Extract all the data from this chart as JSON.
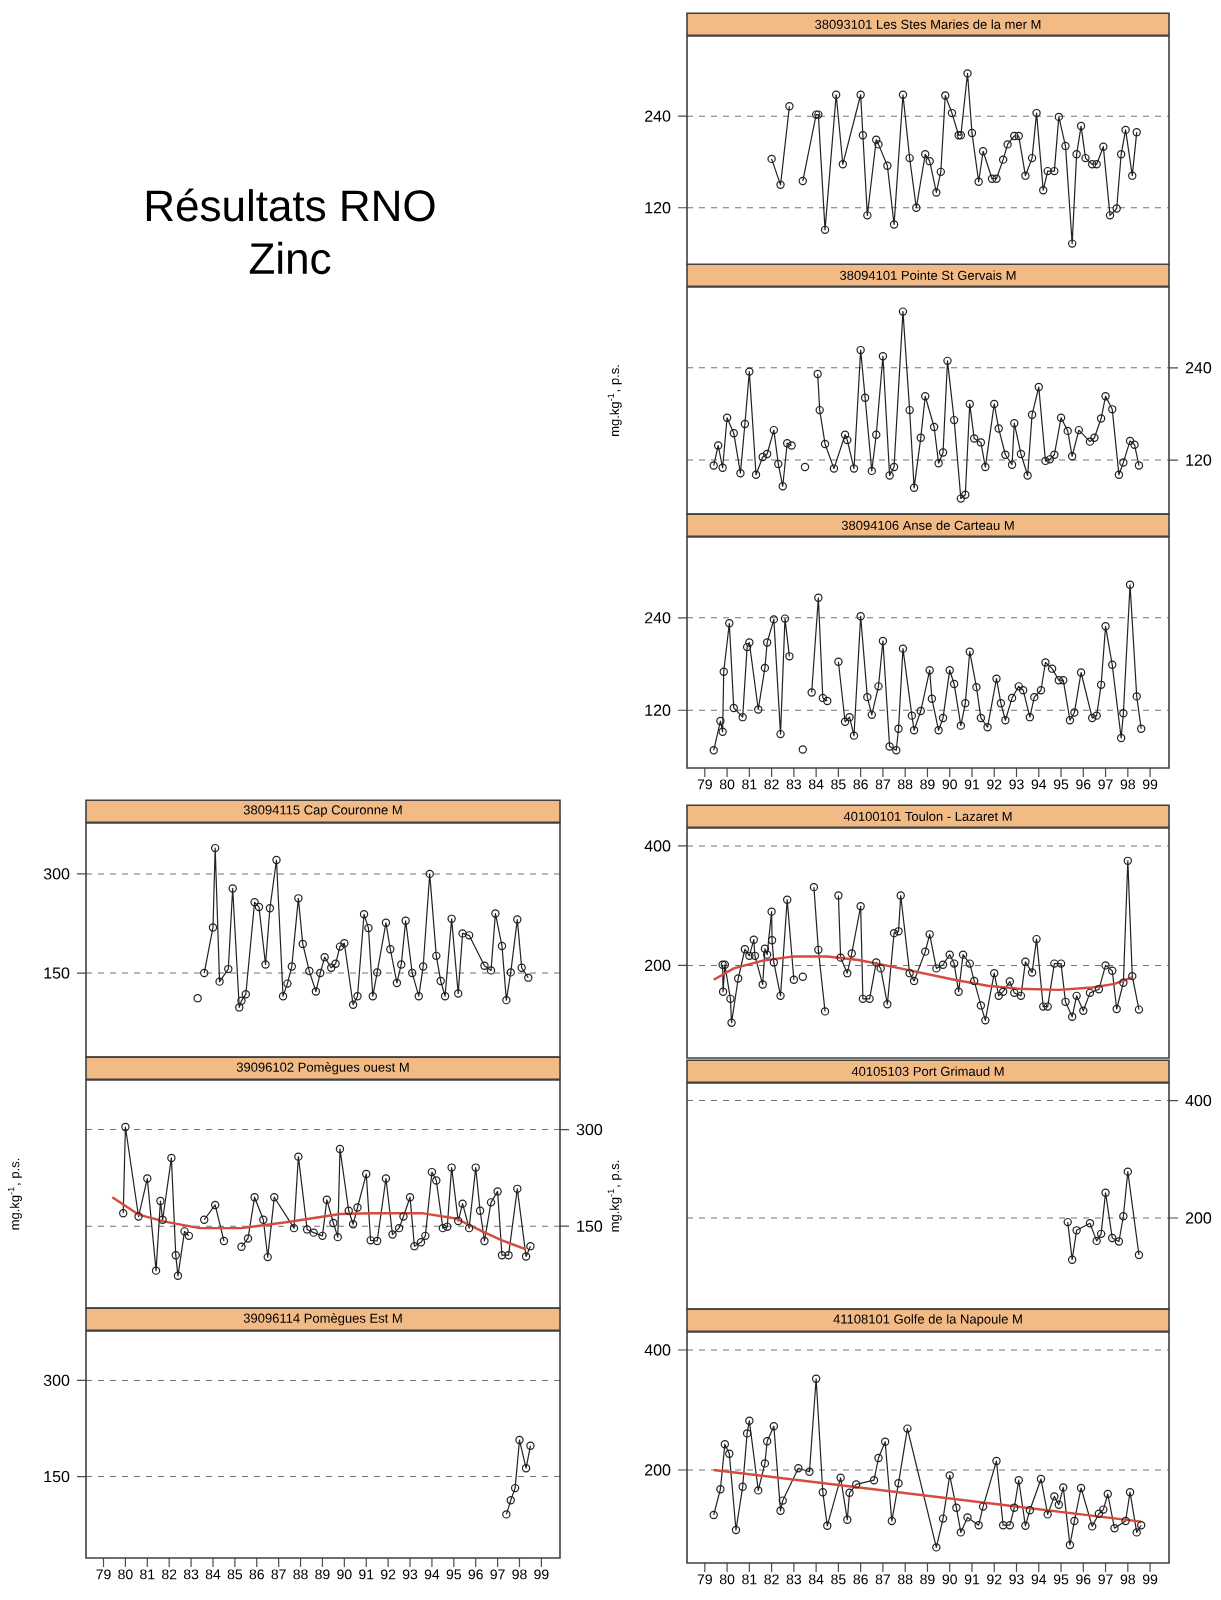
{
  "chart_data": [
    {
      "type": "other",
      "title": "Résultats RNO",
      "subtitle": "Zinc"
    },
    {
      "type": "line",
      "title": "38093101 Les Stes Maries de la mer M",
      "xlim": [
        78.2,
        99.85
      ],
      "ylim": [
        45,
        345
      ],
      "yticks": [
        120,
        240
      ],
      "grid": "y",
      "tick_labels": "y",
      "series": [
        {
          "color": "#222222",
          "marker": "circle",
          "x": [
            82.0,
            82.4,
            82.8,
            83.1,
            83.4,
            84.0,
            84.1,
            84.4,
            84.9,
            85.2,
            86.0,
            86.1,
            86.3,
            86.7,
            86.8,
            87.2,
            87.5,
            87.9,
            88.2,
            88.5,
            88.9,
            89.1,
            89.4,
            89.6,
            89.8,
            90.1,
            90.4,
            90.5,
            90.8,
            91.0,
            91.3,
            91.5,
            91.9,
            92.1,
            92.4,
            92.6,
            92.9,
            93.1,
            93.4,
            93.7,
            93.9,
            94.2,
            94.4,
            94.7,
            94.9,
            95.2,
            95.5,
            95.7,
            95.9,
            96.1,
            96.4,
            96.6,
            96.9,
            97.2,
            97.5,
            97.7,
            97.9,
            98.2,
            98.4
          ],
          "values": [
            184,
            150,
            253,
            null,
            155,
            242,
            242,
            91,
            268,
            177,
            268,
            215,
            110,
            209,
            203,
            175,
            98,
            268,
            185,
            120,
            190,
            181,
            140,
            167,
            267,
            244,
            215,
            215,
            296,
            218,
            154,
            194,
            158,
            158,
            183,
            203,
            214,
            214,
            162,
            185,
            244,
            143,
            168,
            168,
            239,
            201,
            73,
            190,
            227,
            185,
            177,
            177,
            200,
            110,
            119,
            190,
            222,
            162,
            219
          ]
        }
      ]
    },
    {
      "type": "line",
      "title": "38094101 Pointe St Gervais M",
      "ylabel": "mg.kg$^{-1}$, p.s.",
      "xlim": [
        78.2,
        99.85
      ],
      "y2lim": [
        50,
        345
      ],
      "y2ticks": [
        120,
        240
      ],
      "grid": "y",
      "tick_labels": "y",
      "series": [
        {
          "color": "#222222",
          "marker": "circle",
          "axis": "y2",
          "x": [
            79.4,
            79.6,
            79.8,
            80.0,
            80.3,
            80.6,
            80.8,
            81.0,
            81.3,
            81.6,
            81.8,
            82.1,
            82.3,
            82.5,
            82.7,
            82.9,
            83.2,
            83.5,
            83.8,
            84.07,
            84.16,
            84.4,
            84.8,
            85.3,
            85.4,
            85.7,
            86.0,
            86.2,
            86.5,
            86.7,
            87.0,
            87.3,
            87.5,
            87.9,
            88.2,
            88.4,
            88.7,
            88.9,
            89.3,
            89.5,
            89.7,
            89.9,
            90.2,
            90.5,
            90.7,
            90.9,
            91.1,
            91.4,
            91.6,
            92.0,
            92.2,
            92.5,
            92.8,
            92.9,
            93.2,
            93.5,
            93.7,
            94.0,
            94.3,
            94.5,
            94.7,
            95.0,
            95.3,
            95.5,
            95.8,
            96.3,
            96.5,
            96.8,
            97.0,
            97.3,
            97.6,
            97.8,
            98.1,
            98.3,
            98.5
          ],
          "values": [
            113,
            139,
            110,
            175,
            155,
            103,
            167,
            235,
            101,
            124,
            128,
            159,
            115,
            86,
            142,
            139,
            null,
            111,
            null,
            232,
            185,
            141,
            109,
            153,
            146,
            109,
            263,
            201,
            106,
            153,
            255,
            100,
            111,
            313,
            185,
            84,
            149,
            203,
            163,
            116,
            130,
            249,
            172,
            70,
            75,
            193,
            148,
            143,
            111,
            193,
            161,
            127,
            114,
            168,
            128,
            100,
            179,
            215,
            119,
            121,
            127,
            175,
            158,
            125,
            159,
            144,
            149,
            174,
            203,
            186,
            101,
            117,
            145,
            140,
            113
          ]
        }
      ]
    },
    {
      "type": "line",
      "title": "38094106 Anse de Carteau M",
      "xlim": [
        78.2,
        99.85
      ],
      "xticks": [
        79,
        80,
        81,
        82,
        83,
        84,
        85,
        86,
        87,
        88,
        89,
        90,
        91,
        92,
        93,
        94,
        95,
        96,
        97,
        98,
        99
      ],
      "ylim": [
        45,
        345
      ],
      "yticks": [
        120,
        240
      ],
      "grid": "y",
      "series": [
        {
          "color": "#222222",
          "marker": "circle",
          "x": [
            79.4,
            79.7,
            79.8,
            79.85,
            80.1,
            80.3,
            80.7,
            80.9,
            81.0,
            81.4,
            81.7,
            81.8,
            82.1,
            82.4,
            82.6,
            82.8,
            83.1,
            83.4,
            83.6,
            83.8,
            84.1,
            84.3,
            84.5,
            84.75,
            85.0,
            85.3,
            85.5,
            85.7,
            86.0,
            86.3,
            86.5,
            86.8,
            87.0,
            87.3,
            87.6,
            87.7,
            87.9,
            88.3,
            88.4,
            88.7,
            89.1,
            89.2,
            89.5,
            89.7,
            90.0,
            90.2,
            90.5,
            90.7,
            90.9,
            91.2,
            91.4,
            91.7,
            92.1,
            92.3,
            92.5,
            92.8,
            93.1,
            93.3,
            93.6,
            93.8,
            94.1,
            94.3,
            94.6,
            94.9,
            95.1,
            95.4,
            95.6,
            95.9,
            96.4,
            96.6,
            96.8,
            97.0,
            97.3,
            97.7,
            97.8,
            98.1,
            98.4,
            98.6
          ],
          "values": [
            68,
            106,
            92,
            170,
            233,
            123,
            111,
            202,
            208,
            121,
            175,
            208,
            238,
            89,
            239,
            190,
            null,
            69,
            null,
            143,
            266,
            136,
            132,
            null,
            183,
            105,
            111,
            87,
            242,
            137,
            114,
            151,
            210,
            73,
            68,
            96,
            200,
            113,
            94,
            119,
            172,
            135,
            94,
            110,
            172,
            154,
            100,
            129,
            196,
            150,
            110,
            98,
            161,
            129,
            107,
            136,
            151,
            146,
            111,
            137,
            146,
            182,
            174,
            159,
            159,
            107,
            117,
            169,
            110,
            113,
            153,
            229,
            179,
            84,
            116,
            283,
            138,
            96
          ]
        }
      ]
    },
    {
      "type": "line",
      "title": "38094115 Cap Couronne M",
      "xlim": [
        78.2,
        99.85
      ],
      "ylim": [
        23,
        377
      ],
      "yticks": [
        150,
        300
      ],
      "grid": "y",
      "tick_labels": "y",
      "series": [
        {
          "color": "#222222",
          "marker": "circle",
          "x": [
            83.3,
            83.45,
            83.6,
            84.0,
            84.1,
            84.3,
            84.7,
            84.9,
            85.2,
            85.3,
            85.5,
            85.9,
            86.1,
            86.4,
            86.6,
            86.9,
            87.2,
            87.4,
            87.6,
            87.9,
            88.1,
            88.4,
            88.7,
            88.9,
            89.1,
            89.4,
            89.6,
            89.8,
            90.0,
            90.4,
            90.6,
            90.9,
            91.1,
            91.3,
            91.5,
            91.9,
            92.1,
            92.4,
            92.6,
            92.8,
            93.1,
            93.4,
            93.6,
            93.9,
            94.2,
            94.4,
            94.6,
            94.9,
            95.2,
            95.4,
            95.7,
            96.4,
            96.7,
            96.9,
            97.2,
            97.4,
            97.6,
            97.9,
            98.1,
            98.4
          ],
          "values": [
            112,
            null,
            150,
            219,
            339,
            137,
            156,
            278,
            98,
            108,
            118,
            257,
            250,
            163,
            248,
            321,
            115,
            134,
            160,
            263,
            194,
            153,
            122,
            150,
            174,
            158,
            164,
            190,
            195,
            102,
            115,
            239,
            218,
            115,
            151,
            226,
            186,
            135,
            163,
            229,
            150,
            115,
            160,
            300,
            176,
            138,
            115,
            232,
            119,
            210,
            207,
            161,
            154,
            240,
            191,
            109,
            151,
            231,
            158,
            143
          ]
        }
      ]
    },
    {
      "type": "line",
      "title": "39096102 Pomègues ouest M",
      "ylabel": "mg.kg$^{-1}$, p.s.",
      "xlim": [
        78.2,
        99.85
      ],
      "y2lim": [
        23,
        377
      ],
      "y2ticks": [
        150,
        300
      ],
      "grid": "y",
      "tick_labels": "y",
      "series": [
        {
          "color": "#222222",
          "marker": "circle",
          "axis": "y2",
          "x": [
            79.9,
            80.0,
            80.6,
            81.0,
            81.4,
            81.6,
            81.7,
            82.1,
            82.3,
            82.4,
            82.7,
            82.9,
            83.25,
            83.6,
            84.1,
            84.5,
            84.9,
            85.3,
            85.6,
            85.9,
            86.3,
            86.5,
            86.8,
            87.7,
            87.9,
            88.3,
            88.6,
            89.0,
            89.2,
            89.5,
            89.7,
            89.8,
            90.2,
            90.4,
            90.6,
            91.0,
            91.2,
            91.5,
            91.9,
            92.2,
            92.5,
            92.7,
            93.0,
            93.2,
            93.5,
            93.7,
            94.0,
            94.2,
            94.5,
            94.7,
            94.9,
            95.2,
            95.4,
            95.7,
            96.0,
            96.2,
            96.4,
            96.7,
            97.0,
            97.2,
            97.5,
            97.9,
            98.3,
            98.5
          ],
          "values": [
            170,
            304,
            165,
            224,
            81,
            189,
            160,
            256,
            105,
            73,
            142,
            135,
            null,
            160,
            183,
            127,
            null,
            118,
            131,
            195,
            160,
            102,
            195,
            147,
            258,
            145,
            140,
            135,
            191,
            155,
            133,
            270,
            174,
            153,
            179,
            231,
            128,
            127,
            224,
            137,
            147,
            165,
            195,
            119,
            125,
            135,
            234,
            221,
            147,
            149,
            241,
            158,
            185,
            147,
            241,
            174,
            127,
            187,
            204,
            105,
            105,
            208,
            103,
            119
          ]
        },
        {
          "type": "line",
          "color": "#d64a3f",
          "marker": "none",
          "axis": "y2",
          "x": [
            79.4,
            80.6,
            81.8,
            83.4,
            85.3,
            87.5,
            89.8,
            91.3,
            93.6,
            95.1,
            96.3,
            97.2,
            98.3
          ],
          "values": [
            195,
            168,
            157,
            147,
            147,
            157,
            169,
            170,
            170,
            162,
            142,
            128,
            114
          ]
        }
      ]
    },
    {
      "type": "line",
      "title": "39096114 Pomègues Est M",
      "xlim": [
        78.2,
        99.85
      ],
      "xticks": [
        79,
        80,
        81,
        82,
        83,
        84,
        85,
        86,
        87,
        88,
        89,
        90,
        91,
        92,
        93,
        94,
        95,
        96,
        97,
        98,
        99
      ],
      "ylim": [
        23,
        377
      ],
      "yticks": [
        150,
        300
      ],
      "grid": "y",
      "series": [
        {
          "color": "#222222",
          "marker": "circle",
          "x": [
            97.4,
            97.6,
            97.8,
            98.0,
            98.3,
            98.5
          ],
          "values": [
            91,
            113,
            132,
            207,
            163,
            198
          ]
        }
      ]
    },
    {
      "type": "line",
      "title": "40100101 Toulon - Lazaret M",
      "xlim": [
        78.2,
        99.85
      ],
      "ylim": [
        45,
        430
      ],
      "yticks": [
        200,
        400
      ],
      "grid": "y",
      "tick_labels": "y",
      "series": [
        {
          "color": "#222222",
          "marker": "circle",
          "x": [
            79.8,
            79.82,
            79.9,
            80.15,
            80.2,
            80.5,
            80.8,
            81.0,
            81.2,
            81.25,
            81.6,
            81.7,
            81.8,
            82.0,
            82.02,
            82.1,
            82.4,
            82.7,
            83.0,
            83.2,
            83.4,
            83.65,
            83.9,
            84.1,
            84.4,
            84.7,
            85.0,
            85.1,
            85.4,
            85.6,
            86.0,
            86.1,
            86.4,
            86.7,
            86.9,
            87.2,
            87.5,
            87.7,
            87.8,
            88.2,
            88.4,
            88.9,
            89.1,
            89.4,
            89.7,
            90.0,
            90.2,
            90.4,
            90.6,
            90.9,
            91.1,
            91.4,
            91.6,
            92.0,
            92.2,
            92.4,
            92.7,
            92.9,
            93.2,
            93.4,
            93.7,
            93.9,
            94.2,
            94.4,
            94.7,
            95.0,
            95.2,
            95.5,
            95.7,
            96.0,
            96.3,
            96.7,
            97.0,
            97.3,
            97.5,
            97.8,
            98.0,
            98.2,
            98.5
          ],
          "values": [
            201,
            156,
            201,
            144,
            104,
            178,
            227,
            216,
            243,
            216,
            168,
            228,
            218,
            290,
            242,
            205,
            149,
            310,
            176,
            null,
            181,
            null,
            331,
            226,
            123,
            null,
            317,
            213,
            187,
            220,
            299,
            144,
            144,
            205,
            195,
            135,
            254,
            257,
            317,
            187,
            174,
            223,
            252,
            195,
            201,
            218,
            203,
            156,
            218,
            203,
            174,
            133,
            108,
            187,
            149,
            156,
            173,
            154,
            149,
            206,
            188,
            244,
            131,
            131,
            203,
            203,
            139,
            114,
            149,
            124,
            154,
            160,
            200,
            191,
            127,
            171,
            375,
            182,
            126
          ]
        },
        {
          "type": "line",
          "color": "#d64a3f",
          "marker": "none",
          "x": [
            79.4,
            80.3,
            81.6,
            83.0,
            84.5,
            85.9,
            87.4,
            88.8,
            90.2,
            91.7,
            93.1,
            94.9,
            96.4,
            97.4,
            98.2
          ],
          "values": [
            176,
            195,
            208,
            215,
            215,
            209,
            198,
            187,
            176,
            166,
            161,
            159,
            163,
            169,
            180
          ]
        }
      ]
    },
    {
      "type": "line",
      "title": "40105103 Port Grimaud M",
      "ylabel": "mg.kg$^{-1}$, p.s.",
      "xlim": [
        78.2,
        99.85
      ],
      "y2lim": [
        45,
        430
      ],
      "y2ticks": [
        200,
        400
      ],
      "grid": "y",
      "tick_labels": "y",
      "series": [
        {
          "color": "#222222",
          "marker": "circle",
          "axis": "y2",
          "x": [
            95.3,
            95.5,
            95.7,
            96.3,
            96.6,
            96.8,
            97.0,
            97.3,
            97.6,
            97.8,
            98.0,
            98.5
          ],
          "values": [
            193,
            129,
            179,
            191,
            161,
            173,
            243,
            166,
            160,
            203,
            279,
            137
          ]
        }
      ]
    },
    {
      "type": "line",
      "title": "41108101 Golfe de la Napoule M",
      "xlim": [
        78.2,
        99.85
      ],
      "xticks": [
        79,
        80,
        81,
        82,
        83,
        84,
        85,
        86,
        87,
        88,
        89,
        90,
        91,
        92,
        93,
        94,
        95,
        96,
        97,
        98,
        99
      ],
      "ylim": [
        45,
        430
      ],
      "yticks": [
        200,
        400
      ],
      "grid": "y",
      "series": [
        {
          "color": "#222222",
          "marker": "circle",
          "x": [
            79.4,
            79.7,
            79.9,
            80.1,
            80.4,
            80.7,
            80.9,
            81.0,
            81.4,
            81.7,
            81.8,
            82.1,
            82.4,
            82.5,
            83.2,
            83.7,
            84.0,
            84.3,
            84.5,
            85.1,
            85.4,
            85.5,
            85.8,
            86.6,
            86.8,
            87.1,
            87.4,
            87.7,
            88.1,
            89.4,
            89.7,
            90.0,
            90.3,
            90.5,
            90.8,
            91.3,
            91.5,
            92.1,
            92.4,
            92.7,
            92.9,
            93.1,
            93.4,
            93.6,
            94.1,
            94.4,
            94.7,
            94.9,
            95.1,
            95.4,
            95.6,
            95.9,
            96.4,
            96.7,
            96.9,
            97.1,
            97.4,
            97.9,
            98.1,
            98.4,
            98.6
          ],
          "values": [
            125,
            168,
            243,
            227,
            100,
            172,
            261,
            282,
            166,
            211,
            248,
            273,
            132,
            149,
            203,
            197,
            352,
            163,
            107,
            187,
            117,
            162,
            176,
            183,
            220,
            247,
            115,
            178,
            269,
            71,
            119,
            191,
            137,
            96,
            121,
            108,
            139,
            215,
            108,
            108,
            137,
            183,
            107,
            133,
            185,
            126,
            156,
            142,
            171,
            75,
            115,
            170,
            106,
            127,
            134,
            160,
            103,
            115,
            163,
            96,
            108
          ]
        },
        {
          "type": "line",
          "color": "#d64a3f",
          "marker": "none",
          "x": [
            79.4,
            98.6
          ],
          "values": [
            200,
            114
          ]
        }
      ]
    }
  ]
}
